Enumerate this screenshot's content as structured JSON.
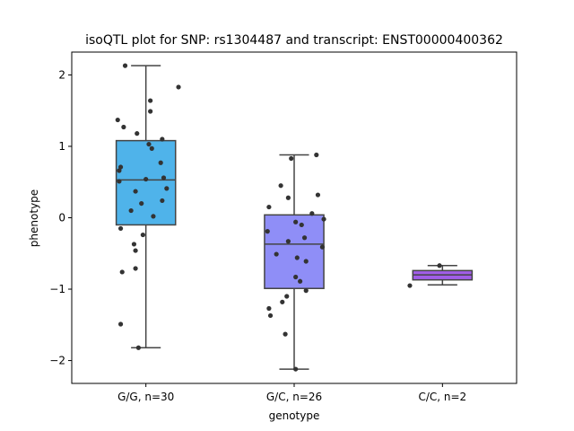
{
  "chart_data": {
    "type": "box",
    "title": "isoQTL plot for SNP: rs1304487 and transcript: ENST00000400362",
    "xlabel": "genotype",
    "ylabel": "phenotype",
    "ylim": [
      -2.32,
      2.32
    ],
    "yticks": [
      -2,
      -1,
      0,
      1,
      2
    ],
    "ytick_labels": [
      "−2",
      "−1",
      "0",
      "1",
      "2"
    ],
    "categories": [
      "G/G, n=30",
      "G/C, n=26",
      "C/C, n=2"
    ],
    "colors": [
      "#4fb3ea",
      "#8f8ef7",
      "#a15ee8"
    ],
    "point_color": "#333333",
    "box_edge_color": "#444444",
    "boxes": [
      {
        "q1": -0.1,
        "median": 0.53,
        "q3": 1.08,
        "whisker_low": -1.82,
        "whisker_high": 2.13
      },
      {
        "q1": -0.99,
        "median": -0.37,
        "q3": 0.04,
        "whisker_low": -2.12,
        "whisker_high": 0.88
      },
      {
        "q1": -0.87,
        "median": -0.8,
        "q3": -0.74,
        "whisker_low": -0.94,
        "whisker_high": -0.67
      }
    ],
    "points": [
      [
        {
          "jitter": -0.14,
          "y": 2.13
        },
        {
          "jitter": 0.22,
          "y": 1.83
        },
        {
          "jitter": 0.03,
          "y": 1.64
        },
        {
          "jitter": 0.03,
          "y": 1.49
        },
        {
          "jitter": -0.19,
          "y": 1.37
        },
        {
          "jitter": -0.15,
          "y": 1.27
        },
        {
          "jitter": -0.06,
          "y": 1.18
        },
        {
          "jitter": 0.11,
          "y": 1.1
        },
        {
          "jitter": 0.02,
          "y": 1.03
        },
        {
          "jitter": 0.04,
          "y": 0.97
        },
        {
          "jitter": 0.1,
          "y": 0.77
        },
        {
          "jitter": -0.17,
          "y": 0.71
        },
        {
          "jitter": -0.18,
          "y": 0.66
        },
        {
          "jitter": 0.12,
          "y": 0.56
        },
        {
          "jitter": -0.18,
          "y": 0.51
        },
        {
          "jitter": 0.14,
          "y": 0.41
        },
        {
          "jitter": -0.07,
          "y": 0.37
        },
        {
          "jitter": 0.11,
          "y": 0.24
        },
        {
          "jitter": -0.03,
          "y": 0.2
        },
        {
          "jitter": -0.1,
          "y": 0.1
        },
        {
          "jitter": 0.05,
          "y": 0.02
        },
        {
          "jitter": -0.17,
          "y": -0.15
        },
        {
          "jitter": -0.02,
          "y": -0.24
        },
        {
          "jitter": -0.08,
          "y": -0.37
        },
        {
          "jitter": -0.07,
          "y": -0.46
        },
        {
          "jitter": -0.07,
          "y": -0.71
        },
        {
          "jitter": -0.16,
          "y": -0.76
        },
        {
          "jitter": -0.17,
          "y": -1.49
        },
        {
          "jitter": -0.05,
          "y": -1.82
        },
        {
          "jitter": 0.0,
          "y": 0.54
        }
      ],
      [
        {
          "jitter": 0.15,
          "y": 0.88
        },
        {
          "jitter": -0.02,
          "y": 0.83
        },
        {
          "jitter": -0.09,
          "y": 0.45
        },
        {
          "jitter": 0.16,
          "y": 0.32
        },
        {
          "jitter": -0.04,
          "y": 0.28
        },
        {
          "jitter": -0.17,
          "y": 0.15
        },
        {
          "jitter": 0.12,
          "y": 0.06
        },
        {
          "jitter": 0.2,
          "y": -0.02
        },
        {
          "jitter": 0.01,
          "y": -0.06
        },
        {
          "jitter": 0.05,
          "y": -0.1
        },
        {
          "jitter": -0.18,
          "y": -0.19
        },
        {
          "jitter": 0.07,
          "y": -0.28
        },
        {
          "jitter": -0.04,
          "y": -0.33
        },
        {
          "jitter": 0.19,
          "y": -0.41
        },
        {
          "jitter": -0.12,
          "y": -0.51
        },
        {
          "jitter": 0.02,
          "y": -0.56
        },
        {
          "jitter": 0.08,
          "y": -0.61
        },
        {
          "jitter": 0.01,
          "y": -0.83
        },
        {
          "jitter": 0.04,
          "y": -0.89
        },
        {
          "jitter": 0.08,
          "y": -1.02
        },
        {
          "jitter": -0.05,
          "y": -1.1
        },
        {
          "jitter": -0.08,
          "y": -1.18
        },
        {
          "jitter": -0.17,
          "y": -1.27
        },
        {
          "jitter": -0.16,
          "y": -1.37
        },
        {
          "jitter": -0.06,
          "y": -1.63
        },
        {
          "jitter": 0.01,
          "y": -2.12
        }
      ],
      [
        {
          "jitter": -0.02,
          "y": -0.67
        },
        {
          "jitter": -0.22,
          "y": -0.95
        }
      ]
    ]
  }
}
